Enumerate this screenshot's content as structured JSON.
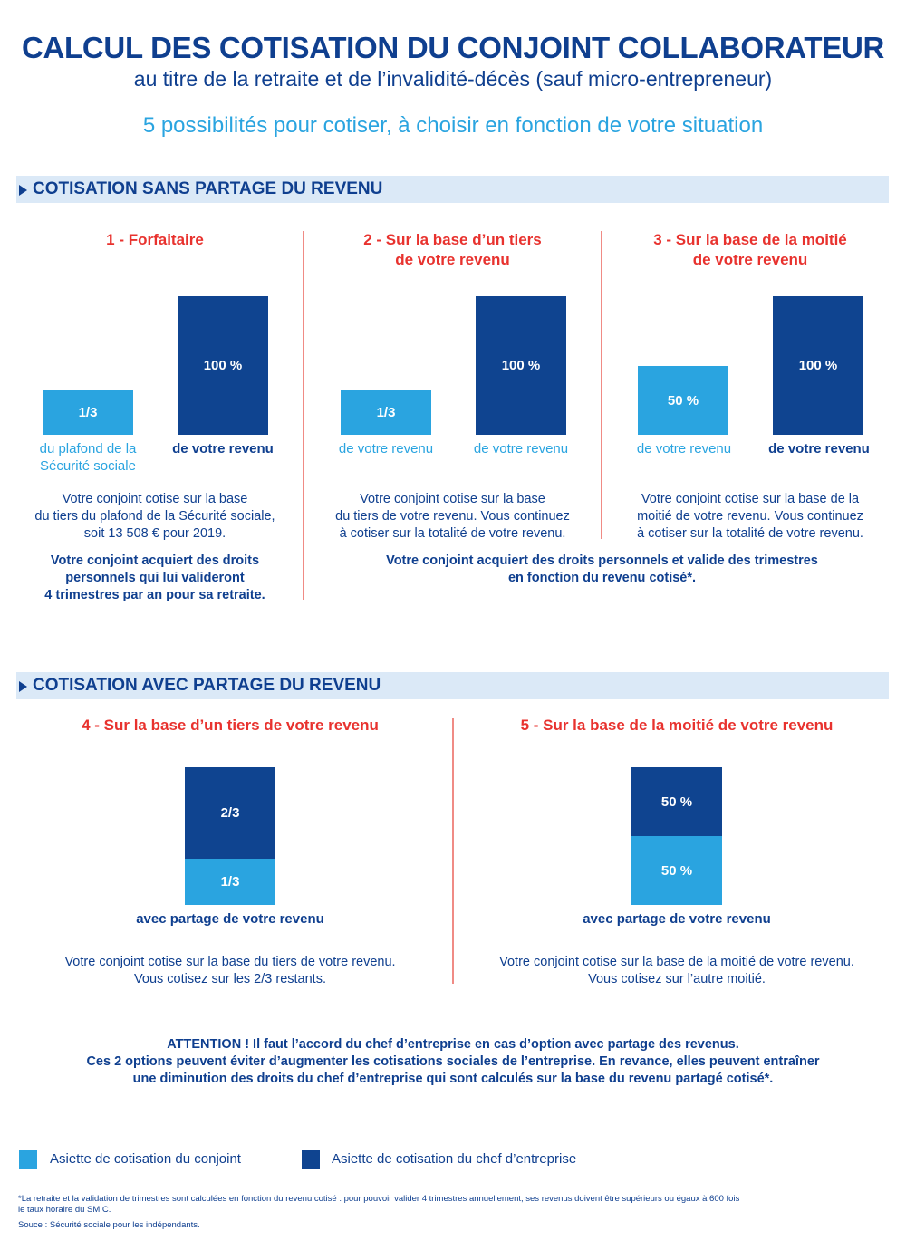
{
  "header": {
    "title": "CALCUL DES COTISATION DU CONJOINT COLLABORATEUR",
    "subtitle": "au titre de la retraite et de l’invalidité-décès (sauf micro-entrepreneur)",
    "tagline": "5 possibilités pour cotiser, à choisir en fonction de votre situation"
  },
  "colors": {
    "conjoint": "#2aa4e0",
    "chef": "#0f4490",
    "accent_red": "#e8322e",
    "band": "#dbe9f7"
  },
  "section1": {
    "title": "COTISATION SANS PARTAGE DU REVENU",
    "options": [
      {
        "title_l1": "1 - Forfaitaire",
        "title_l2": "",
        "bar_a": {
          "label": "1/3",
          "caption_l1": "du plafond de la",
          "caption_l2": "Sécurité sociale",
          "value": 33.3
        },
        "bar_b": {
          "label": "100 %",
          "caption_l1": "de votre revenu",
          "value": 100
        },
        "desc": [
          "Votre conjoint cotise sur la base",
          "du tiers du plafond de la Sécurité sociale,",
          "soit 13 508 € pour 2019."
        ],
        "note": [
          "Votre conjoint acquiert des droits",
          "personnels qui lui valideront",
          "4 trimestres par an pour sa retraite."
        ]
      },
      {
        "title_l1": "2 - Sur la base d’un tiers",
        "title_l2": "de votre revenu",
        "bar_a": {
          "label": "1/3",
          "caption_l1": "de votre revenu",
          "value": 33.3
        },
        "bar_b": {
          "label": "100 %",
          "caption_l1": "de votre revenu",
          "value": 100
        },
        "desc": [
          "Votre conjoint cotise sur la base",
          "du tiers de votre revenu. Vous continuez",
          "à cotiser sur la totalité de votre revenu."
        ]
      },
      {
        "title_l1": "3 - Sur la base de la moitié",
        "title_l2": "de votre revenu",
        "bar_a": {
          "label": "50 %",
          "caption_l1": "de votre revenu",
          "value": 50
        },
        "bar_b": {
          "label": "100 %",
          "caption_l1": "de votre revenu",
          "value": 100
        },
        "desc": [
          "Votre conjoint cotise sur la base de la",
          "moitié de votre revenu. Vous continuez",
          "à cotiser sur la totalité de votre revenu."
        ]
      }
    ],
    "shared_note": [
      "Votre conjoint acquiert des droits personnels et valide des trimestres",
      "en fonction du revenu cotisé*."
    ]
  },
  "section2": {
    "title": "COTISATION AVEC PARTAGE DU REVENU",
    "options": [
      {
        "title": "4 - Sur la base d’un tiers de votre revenu",
        "top": {
          "label": "2/3",
          "value": 66.7
        },
        "bottom": {
          "label": "1/3",
          "value": 33.3
        },
        "caption": "avec partage de votre revenu",
        "desc": [
          "Votre conjoint cotise sur la base du tiers de votre revenu.",
          "Vous cotisez sur les 2/3 restants."
        ]
      },
      {
        "title": "5 - Sur la base de la moitié de votre revenu",
        "top": {
          "label": "50 %",
          "value": 50
        },
        "bottom": {
          "label": "50 %",
          "value": 50
        },
        "caption": "avec partage de votre revenu",
        "desc": [
          "Votre conjoint cotise sur la base de la moitié de votre revenu.",
          "Vous cotisez sur l’autre moitié."
        ]
      }
    ]
  },
  "attention": [
    "ATTENTION ! Il faut l’accord du chef d’entreprise en cas d’option avec partage des revenus.",
    "Ces 2 options peuvent éviter d’augmenter les cotisations sociales de l’entreprise. En revance, elles peuvent entraîner",
    "une diminution des droits du chef d’entreprise qui sont calculés sur la base du revenu partagé cotisé*."
  ],
  "legend": {
    "conjoint": "Asiette de cotisation du conjoint",
    "chef": "Asiette de cotisation du chef d’entreprise"
  },
  "footnotes": {
    "note_l1": "*La retraite et la validation de trimestres sont calculées en fonction du revenu cotisé : pour pouvoir valider 4 trimestres annuellement, ses revenus doivent être supérieurs ou égaux à 600 fois",
    "note_l2": "le taux horaire du SMIC.",
    "source": "Souce : Sécurité sociale pour les indépendants."
  }
}
